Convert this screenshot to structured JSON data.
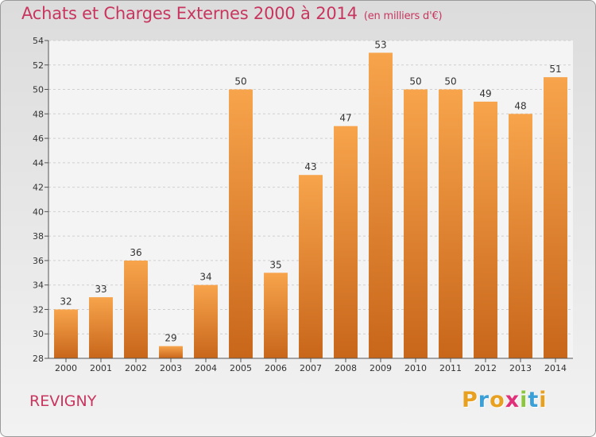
{
  "header": {
    "title": "Achats et Charges Externes 2000 à 2014",
    "unit": "(en milliers d'€)"
  },
  "footer": {
    "commune": "REVIGNY",
    "logo_letters": [
      "P",
      "r",
      "o",
      "x",
      "i",
      "t",
      "i"
    ],
    "logo_colors": [
      "#e8a020",
      "#3ba0d8",
      "#e8a020",
      "#e0307a",
      "#8cc63f",
      "#3ba0d8",
      "#e8a020"
    ]
  },
  "chart_data": {
    "type": "bar",
    "categories": [
      "2000",
      "2001",
      "2002",
      "2003",
      "2004",
      "2005",
      "2006",
      "2007",
      "2008",
      "2009",
      "2010",
      "2011",
      "2012",
      "2013",
      "2014"
    ],
    "values": [
      32,
      33,
      36,
      29,
      34,
      50,
      35,
      43,
      47,
      53,
      50,
      50,
      49,
      48,
      51
    ],
    "title": "Achats et Charges Externes 2000 à 2014",
    "ylim": [
      28,
      54
    ],
    "yticks": [
      28,
      30,
      32,
      34,
      36,
      38,
      40,
      42,
      44,
      46,
      48,
      50,
      52,
      54
    ],
    "grid": true,
    "bar_color_top": "#f7a44c",
    "bar_color_bottom": "#c8661a"
  }
}
